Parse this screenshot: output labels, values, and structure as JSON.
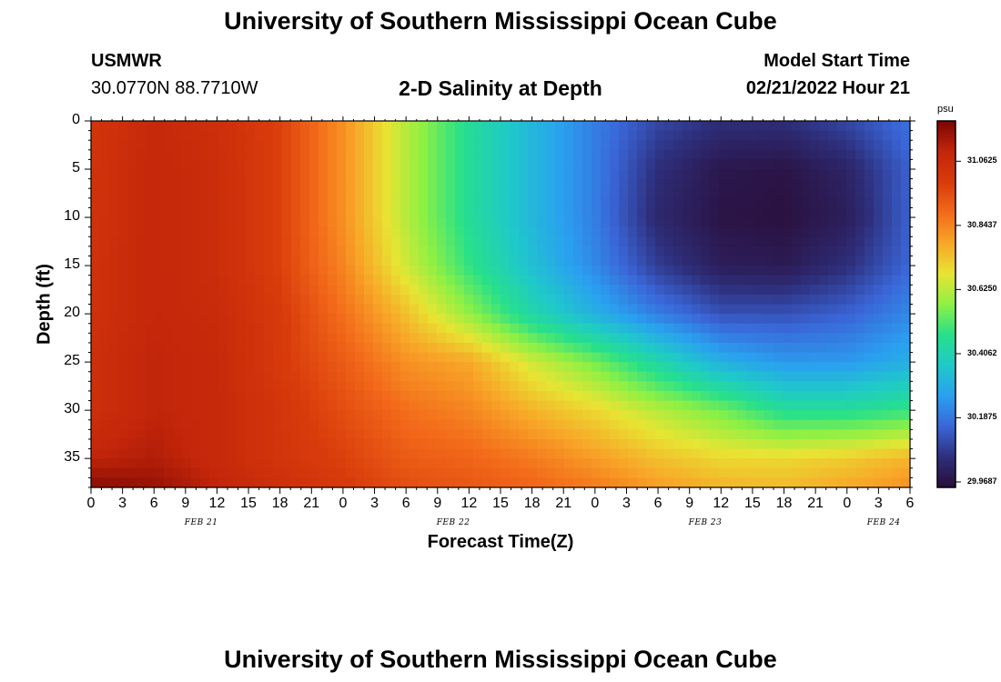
{
  "header": {
    "title_top": "University of Southern Mississippi Ocean Cube",
    "station": "USMWR",
    "coords": "30.0770N  88.7710W",
    "plot_title": "2-D Salinity at Depth",
    "model_start_label": "Model Start Time",
    "model_start_value": "02/21/2022 Hour 21",
    "title_bottom": "University of Southern Mississippi Ocean Cube"
  },
  "chart_data": {
    "type": "heatmap",
    "title": "2-D Salinity at Depth",
    "xlabel": "Forecast Time(Z)",
    "ylabel": "Depth (ft)",
    "x_tick_labels": [
      "0",
      "3",
      "6",
      "9",
      "12",
      "15",
      "18",
      "21",
      "0",
      "3",
      "6",
      "9",
      "12",
      "15",
      "18",
      "21",
      "0",
      "3",
      "6",
      "9",
      "12",
      "15",
      "18",
      "21",
      "0",
      "3",
      "6"
    ],
    "date_labels": [
      {
        "label": "FEB 21",
        "hour": 10.5
      },
      {
        "label": "FEB 22",
        "hour": 34.5
      },
      {
        "label": "FEB 23",
        "hour": 58.5
      },
      {
        "label": "FEB 24",
        "hour": 75.5
      }
    ],
    "xlim_hours": [
      0,
      78
    ],
    "y_ticks": [
      0,
      5,
      10,
      15,
      20,
      25,
      30,
      35
    ],
    "ylim": [
      0,
      38
    ],
    "colorbar": {
      "unit": "psu",
      "ticks": [
        "31.0625",
        "30.8437",
        "30.6250",
        "30.4062",
        "30.1875",
        "29.9687"
      ],
      "range": [
        29.95,
        31.2
      ],
      "colors": [
        "#2a0e3a",
        "#2e2f7c",
        "#3a66d8",
        "#2aa0f0",
        "#1fc9c9",
        "#27e08a",
        "#8ef044",
        "#e8e433",
        "#f8a628",
        "#f36a1a",
        "#d83b0b",
        "#c3260a",
        "#7a0503"
      ]
    },
    "salinity_grid_note": "columns every 6 h from hour 0 to 78; rows at depth 0,5,10,15,20,25,30,35,38 ft",
    "depths": [
      0,
      5,
      10,
      15,
      20,
      25,
      30,
      35,
      38
    ],
    "hours": [
      0,
      6,
      12,
      18,
      24,
      30,
      36,
      42,
      48,
      54,
      60,
      66,
      72,
      78
    ],
    "values": [
      [
        31.02,
        31.08,
        31.05,
        30.98,
        30.82,
        30.62,
        30.45,
        30.32,
        30.2,
        30.1,
        30.05,
        30.05,
        30.1,
        30.18
      ],
      [
        31.03,
        31.09,
        31.06,
        30.98,
        30.82,
        30.62,
        30.45,
        30.32,
        30.2,
        30.05,
        29.98,
        29.97,
        30.02,
        30.15
      ],
      [
        31.03,
        31.09,
        31.06,
        30.98,
        30.82,
        30.62,
        30.45,
        30.32,
        30.2,
        30.03,
        29.97,
        29.96,
        30.0,
        30.15
      ],
      [
        31.04,
        31.09,
        31.06,
        30.98,
        30.84,
        30.65,
        30.48,
        30.34,
        30.22,
        30.08,
        30.0,
        29.99,
        30.05,
        30.16
      ],
      [
        31.04,
        31.09,
        31.07,
        31.0,
        30.88,
        30.74,
        30.58,
        30.42,
        30.3,
        30.2,
        30.12,
        30.12,
        30.15,
        30.22
      ],
      [
        31.05,
        31.1,
        31.08,
        31.0,
        30.92,
        30.82,
        30.78,
        30.65,
        30.55,
        30.42,
        30.3,
        30.25,
        30.25,
        30.3
      ],
      [
        31.05,
        31.1,
        31.08,
        31.02,
        30.95,
        30.88,
        30.84,
        30.76,
        30.7,
        30.62,
        30.55,
        30.45,
        30.45,
        30.48
      ],
      [
        31.1,
        31.12,
        31.08,
        31.02,
        30.98,
        30.92,
        30.9,
        30.86,
        30.8,
        30.74,
        30.7,
        30.7,
        30.72,
        30.76
      ],
      [
        31.18,
        31.16,
        31.1,
        31.05,
        31.0,
        30.95,
        30.93,
        30.9,
        30.86,
        30.8,
        30.76,
        30.75,
        30.78,
        30.82
      ]
    ]
  }
}
